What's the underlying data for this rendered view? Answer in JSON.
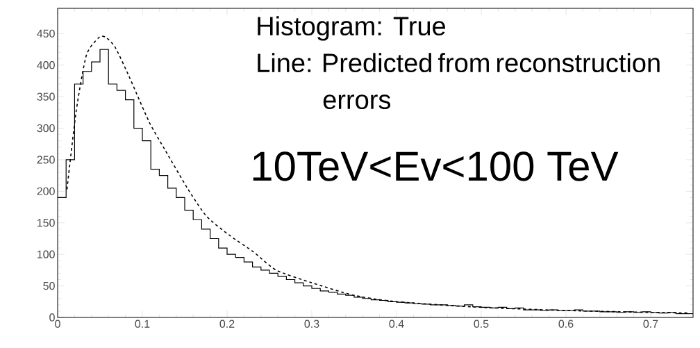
{
  "chart_data": {
    "type": "histogram",
    "bins": [
      0,
      0.01,
      0.02,
      0.03,
      0.04,
      0.05,
      0.06,
      0.07,
      0.08,
      0.09,
      0.1,
      0.11,
      0.12,
      0.13,
      0.14,
      0.15,
      0.16,
      0.17,
      0.18,
      0.19,
      0.2,
      0.21,
      0.22,
      0.23,
      0.24,
      0.25,
      0.26,
      0.27,
      0.28,
      0.29,
      0.3,
      0.31,
      0.32,
      0.33,
      0.34,
      0.35,
      0.36,
      0.37,
      0.38,
      0.39,
      0.4,
      0.41,
      0.42,
      0.43,
      0.44,
      0.45,
      0.46,
      0.47,
      0.48,
      0.49,
      0.5,
      0.51,
      0.52,
      0.53,
      0.54,
      0.55,
      0.56,
      0.57,
      0.58,
      0.59,
      0.6,
      0.61,
      0.62,
      0.63,
      0.64,
      0.65,
      0.66,
      0.67,
      0.68,
      0.69,
      0.7,
      0.71,
      0.72,
      0.73,
      0.74,
      0.75
    ],
    "values": [
      190,
      250,
      370,
      390,
      405,
      425,
      370,
      360,
      345,
      300,
      280,
      235,
      225,
      205,
      190,
      170,
      155,
      140,
      125,
      110,
      100,
      95,
      88,
      80,
      75,
      70,
      65,
      60,
      55,
      50,
      46,
      42,
      40,
      37,
      35,
      32,
      30,
      28,
      27,
      25,
      24,
      23,
      22,
      21,
      20,
      20,
      19,
      18,
      20,
      17,
      16,
      15,
      16,
      14,
      15,
      12,
      12,
      11,
      12,
      11,
      11,
      12,
      10,
      10,
      9,
      9,
      8,
      9,
      8,
      9,
      8,
      7,
      8,
      6,
      6
    ],
    "color": "#000000",
    "series": [
      {
        "type": "line",
        "color": "#000000",
        "line_style": "dashed",
        "x": [
          0.011,
          0.022,
          0.034,
          0.049,
          0.057,
          0.068,
          0.084,
          0.108,
          0.127,
          0.154,
          0.176,
          0.203,
          0.231,
          0.258,
          0.3,
          0.35,
          0.4,
          0.5,
          0.6,
          0.7,
          0.745
        ],
        "values": [
          203,
          328,
          416,
          444,
          444,
          428,
          383,
          310,
          265,
          203,
          160,
          130,
          104,
          75,
          55,
          35,
          25,
          16,
          11,
          8,
          7
        ]
      }
    ],
    "xlim": [
      0,
      0.75
    ],
    "ylim": [
      0,
      490
    ],
    "xticks": [
      0,
      0.1,
      0.2,
      0.3,
      0.4,
      0.5,
      0.6,
      0.7
    ],
    "yticks": [
      0,
      50,
      100,
      150,
      200,
      250,
      300,
      350,
      400,
      450
    ],
    "annotations": [
      "Histogram: True",
      "Line: Predicted from reconstruction errors",
      "10TeV<Ev<100 TeV"
    ]
  }
}
